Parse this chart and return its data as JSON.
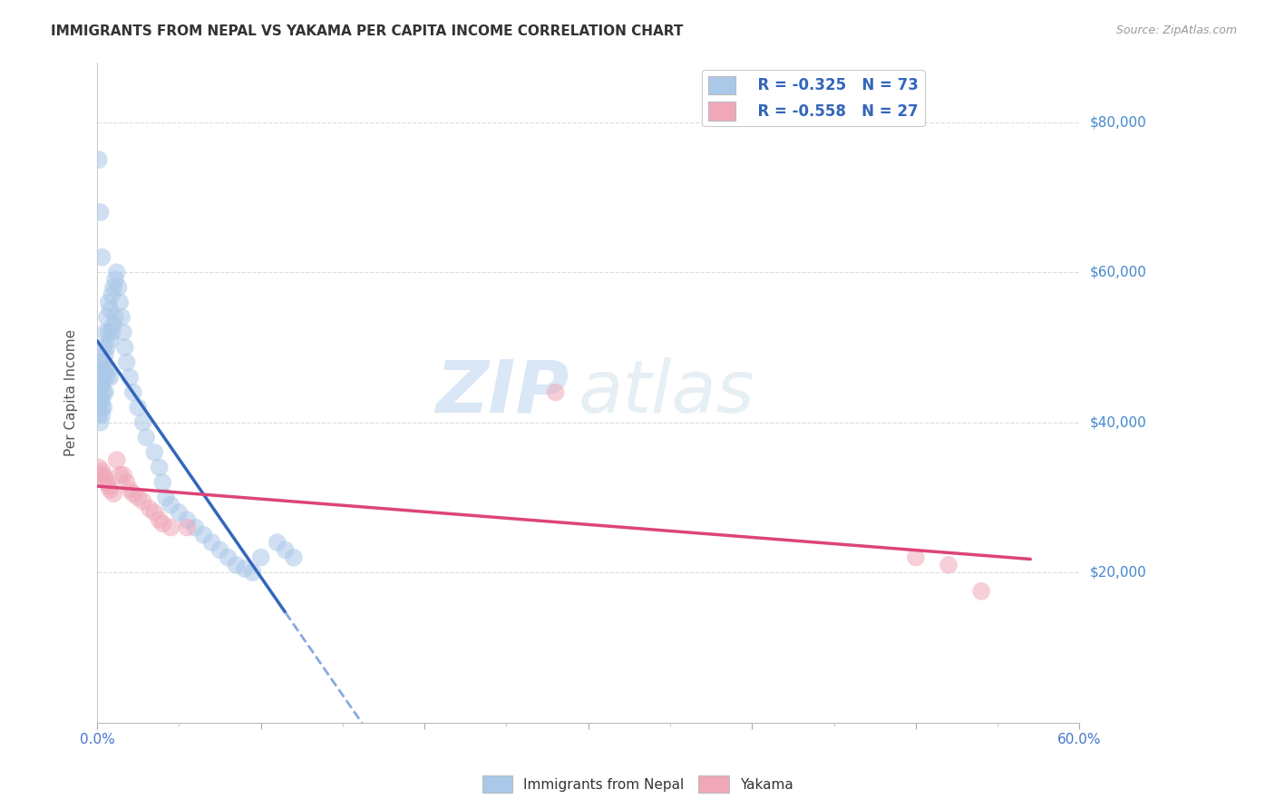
{
  "title": "IMMIGRANTS FROM NEPAL VS YAKAMA PER CAPITA INCOME CORRELATION CHART",
  "source": "Source: ZipAtlas.com",
  "ylabel": "Per Capita Income",
  "ytick_labels": [
    "$80,000",
    "$60,000",
    "$40,000",
    "$20,000"
  ],
  "ytick_values": [
    80000,
    60000,
    40000,
    20000
  ],
  "xlim": [
    0.0,
    0.6
  ],
  "ylim": [
    0,
    88000
  ],
  "legend_r1": "R = -0.325",
  "legend_n1": "N = 73",
  "legend_r2": "R = -0.558",
  "legend_n2": "N = 27",
  "legend_label1": "Immigrants from Nepal",
  "legend_label2": "Yakama",
  "nepal_color": "#aac8e8",
  "yakama_color": "#f0a8b8",
  "nepal_line_color": "#3366bb",
  "yakama_line_color": "#dd4477",
  "dashed_line_color": "#88aadd",
  "watermark_zip": "ZIP",
  "watermark_atlas": "atlas",
  "nepal_x": [
    0.001,
    0.001,
    0.001,
    0.001,
    0.002,
    0.002,
    0.002,
    0.002,
    0.002,
    0.003,
    0.003,
    0.003,
    0.003,
    0.003,
    0.003,
    0.004,
    0.004,
    0.004,
    0.004,
    0.004,
    0.005,
    0.005,
    0.005,
    0.005,
    0.006,
    0.006,
    0.006,
    0.007,
    0.007,
    0.007,
    0.008,
    0.008,
    0.008,
    0.009,
    0.009,
    0.01,
    0.01,
    0.011,
    0.011,
    0.012,
    0.013,
    0.014,
    0.015,
    0.016,
    0.017,
    0.018,
    0.02,
    0.022,
    0.025,
    0.028,
    0.03,
    0.035,
    0.038,
    0.04,
    0.042,
    0.045,
    0.05,
    0.055,
    0.06,
    0.065,
    0.07,
    0.075,
    0.08,
    0.085,
    0.09,
    0.095,
    0.1,
    0.11,
    0.115,
    0.12,
    0.001,
    0.002,
    0.003
  ],
  "nepal_y": [
    44000,
    43000,
    42000,
    41000,
    47000,
    45000,
    44000,
    43000,
    40000,
    48000,
    46000,
    45000,
    43000,
    42000,
    41000,
    50000,
    48000,
    46000,
    44000,
    42000,
    52000,
    49000,
    47000,
    44000,
    54000,
    50000,
    46000,
    56000,
    52000,
    47000,
    55000,
    51000,
    46000,
    57000,
    52000,
    58000,
    53000,
    59000,
    54000,
    60000,
    58000,
    56000,
    54000,
    52000,
    50000,
    48000,
    46000,
    44000,
    42000,
    40000,
    38000,
    36000,
    34000,
    32000,
    30000,
    29000,
    28000,
    27000,
    26000,
    25000,
    24000,
    23000,
    22000,
    21000,
    20500,
    20000,
    22000,
    24000,
    23000,
    22000,
    75000,
    68000,
    62000
  ],
  "yakama_x": [
    0.001,
    0.002,
    0.003,
    0.004,
    0.005,
    0.006,
    0.007,
    0.008,
    0.01,
    0.012,
    0.014,
    0.016,
    0.018,
    0.02,
    0.022,
    0.025,
    0.028,
    0.032,
    0.035,
    0.038,
    0.04,
    0.045,
    0.055,
    0.28,
    0.5,
    0.52,
    0.54
  ],
  "yakama_y": [
    34000,
    33000,
    33500,
    33000,
    32500,
    32000,
    31500,
    31000,
    30500,
    35000,
    33000,
    33000,
    32000,
    31000,
    30500,
    30000,
    29500,
    28500,
    28000,
    27000,
    26500,
    26000,
    26000,
    44000,
    22000,
    21000,
    17500
  ]
}
